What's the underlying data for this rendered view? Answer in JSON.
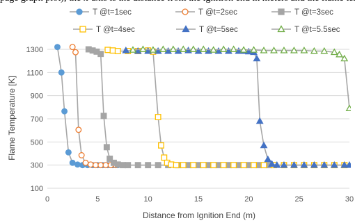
{
  "caption": "page graph plot); the x-axis is the distance from the ignition end in meters and the flame temperature in K",
  "chart_data": {
    "type": "line",
    "title": "",
    "xlabel": "Distance from Ignition End (m)",
    "ylabel": "Flame Temperature [K]",
    "xlim": [
      0,
      30
    ],
    "ylim": [
      100,
      1300
    ],
    "xticks": [
      0,
      5,
      10,
      15,
      20,
      25,
      30
    ],
    "yticks": [
      100,
      300,
      500,
      700,
      900,
      1100,
      1300
    ],
    "grid": "horizontal",
    "legend_position": "top",
    "series": [
      {
        "name": "T @t=1sec",
        "color": "#5b9bd5",
        "marker": "circle",
        "filled": true,
        "x": [
          1.0,
          1.4,
          1.7,
          2.1,
          2.5,
          3.0,
          3.5,
          4.0,
          4.5,
          5.0,
          5.5,
          6.0,
          6.5,
          7.0
        ],
        "y": [
          1320,
          1100,
          765,
          410,
          320,
          305,
          300,
          300,
          300,
          300,
          300,
          300,
          300,
          300
        ]
      },
      {
        "name": "T @t=2sec",
        "color": "#ed7d31",
        "marker": "circle",
        "filled": false,
        "x": [
          2.5,
          2.8,
          3.1,
          3.4,
          3.8,
          4.3,
          4.8,
          5.3,
          5.8,
          6.3,
          6.8
        ],
        "y": [
          1320,
          1275,
          605,
          385,
          320,
          305,
          300,
          300,
          300,
          300,
          300
        ]
      },
      {
        "name": "T @t=3sec",
        "color": "#a5a5a5",
        "marker": "square",
        "filled": true,
        "x": [
          4.1,
          4.5,
          4.9,
          5.3,
          5.6,
          5.9,
          6.2,
          6.6,
          7.0,
          7.5,
          8.0,
          9.0,
          10.0,
          11.0,
          12.0,
          13.0,
          14.0,
          15.0,
          16.0,
          17.0,
          18.0,
          19.0,
          20.0,
          21.0,
          22.0
        ],
        "y": [
          1300,
          1290,
          1280,
          1260,
          725,
          455,
          355,
          320,
          305,
          300,
          300,
          300,
          300,
          300,
          300,
          300,
          300,
          300,
          300,
          300,
          300,
          300,
          300,
          300,
          300
        ]
      },
      {
        "name": "T @t=4sec",
        "color": "#ffc000",
        "marker": "square",
        "filled": false,
        "x": [
          6.0,
          6.5,
          7.0,
          8.0,
          9.0,
          10.0,
          10.5,
          11.0,
          11.3,
          11.6,
          11.9,
          12.3,
          12.8,
          13.5,
          14.5,
          15.5,
          16.5,
          17.5,
          18.5,
          19.5,
          20.5,
          21.5,
          22.5,
          23.5,
          24.5,
          25.5,
          26.5,
          27.5,
          28.5,
          29.5
        ],
        "y": [
          1295,
          1290,
          1285,
          1285,
          1285,
          1290,
          1280,
          715,
          470,
          365,
          320,
          305,
          300,
          300,
          300,
          300,
          300,
          300,
          300,
          300,
          300,
          300,
          300,
          300,
          300,
          300,
          300,
          300,
          300,
          300
        ]
      },
      {
        "name": "T @t=5sec",
        "color": "#4472c4",
        "marker": "triangle",
        "filled": true,
        "x": [
          7.8,
          9.0,
          10.0,
          11.0,
          12.0,
          13.0,
          14.0,
          15.0,
          16.0,
          17.0,
          18.0,
          19.0,
          19.5,
          20.0,
          20.5,
          20.8,
          21.1,
          21.5,
          21.9,
          22.3,
          22.8,
          23.5,
          24.5,
          25.5,
          26.5,
          27.5,
          28.5,
          29.5,
          30.0
        ],
        "y": [
          1290,
          1285,
          1285,
          1285,
          1285,
          1285,
          1290,
          1285,
          1285,
          1285,
          1285,
          1285,
          1285,
          1280,
          1275,
          1220,
          680,
          470,
          350,
          310,
          300,
          300,
          300,
          300,
          300,
          300,
          300,
          300,
          300
        ]
      },
      {
        "name": "T @t=5.5sec",
        "color": "#70ad47",
        "marker": "triangle",
        "filled": false,
        "x": [
          8.5,
          9.5,
          10.5,
          11.5,
          12.5,
          13.5,
          14.5,
          15.5,
          16.5,
          17.5,
          18.5,
          19.5,
          20.5,
          21.5,
          22.5,
          23.5,
          24.5,
          25.5,
          26.5,
          27.5,
          28.5,
          29.0,
          29.5,
          30.0
        ],
        "y": [
          1295,
          1300,
          1295,
          1300,
          1300,
          1300,
          1300,
          1300,
          1295,
          1300,
          1300,
          1295,
          1295,
          1290,
          1290,
          1290,
          1290,
          1290,
          1285,
          1285,
          1275,
          1255,
          1220,
          790
        ]
      }
    ]
  }
}
